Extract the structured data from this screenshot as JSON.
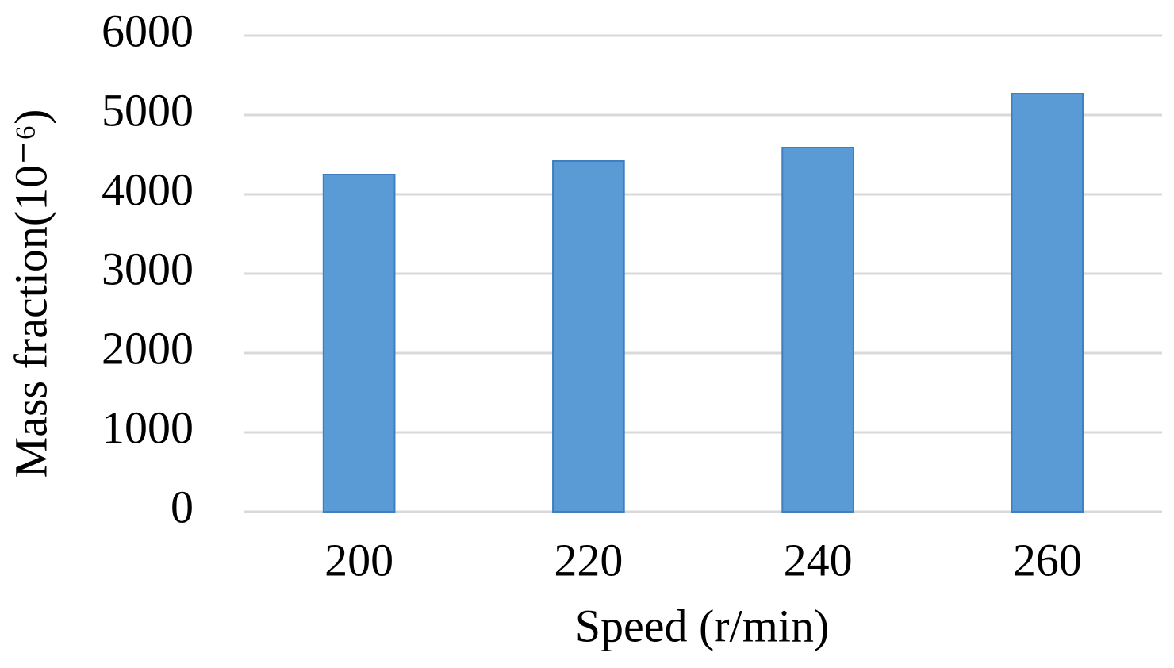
{
  "chart_data": {
    "type": "bar",
    "x_label": "Speed (r/min)",
    "y_label": "Mass fraction(10⁻⁶)",
    "categories": [
      "200",
      "220",
      "240",
      "260"
    ],
    "values": [
      4250,
      4420,
      4590,
      5270
    ],
    "color": "#5b9bd5",
    "ylim": [
      0,
      6000
    ],
    "yticks": [
      0,
      1000,
      2000,
      3000,
      4000,
      5000,
      6000
    ],
    "grid": true
  }
}
